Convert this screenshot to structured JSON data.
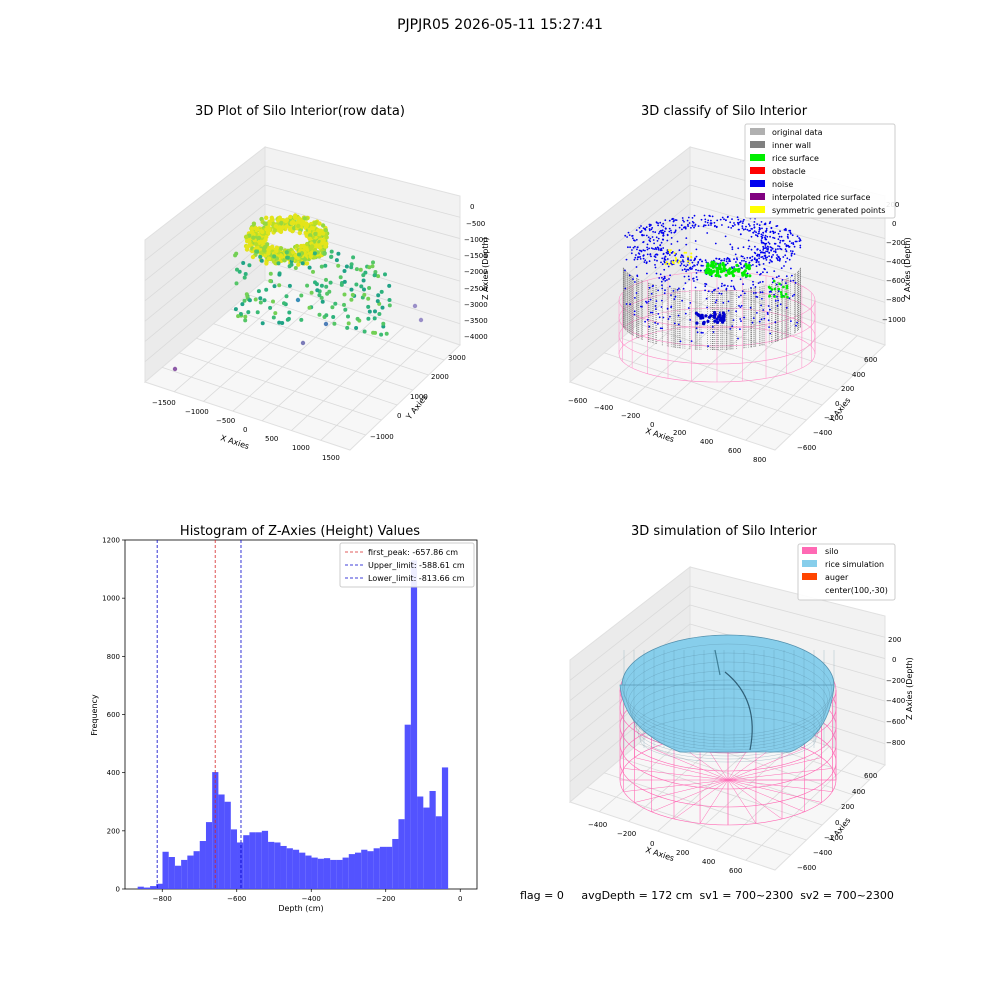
{
  "figure_title": "PJPJR05 2026-05-11 15:27:41",
  "footer": "flag = 0     avgDepth = 172 cm  sv1 = 700~2300  sv2 = 700~2300",
  "colors": {
    "hist_bar": "#4a4aff",
    "first_peak": "#d62728",
    "limits": "#0000cc",
    "silo": "#ff69b4",
    "rice": "#87ceeb",
    "auger": "#ff4500",
    "inner_wall": "#808080",
    "rice_surface": "#00ee00",
    "noise": "#0000ee"
  },
  "chart_data": [
    {
      "type": "scatter",
      "projection": "3d",
      "title": "3D Plot of Silo Interior(row data)",
      "xlabel": "X Axies",
      "ylabel": "Y Axies",
      "zlabel": "Z Axies (Depth)",
      "x_ticks": [
        "−1500",
        "−1000",
        "−500",
        "0",
        "500",
        "1000",
        "1500"
      ],
      "y_ticks": [
        "−1000",
        "0",
        "1000",
        "2000",
        "3000"
      ],
      "z_ticks": [
        "0",
        "−500",
        "−1000",
        "−1500",
        "−2000",
        "−2500",
        "−3000",
        "−3500",
        "−4000"
      ],
      "xlim": [
        -1700,
        1700
      ],
      "ylim": [
        -1500,
        3500
      ],
      "zlim": [
        -4200,
        200
      ],
      "grid": true
    },
    {
      "type": "scatter",
      "projection": "3d",
      "title": "3D classify of Silo Interior",
      "xlabel": "X Axies",
      "ylabel": "Y Axies",
      "zlabel": "Z Axies (Depth)",
      "x_ticks": [
        "−600",
        "−400",
        "−200",
        "0",
        "200",
        "400",
        "600",
        "800"
      ],
      "y_ticks": [
        "−600",
        "−400",
        "−200",
        "0",
        "200",
        "400",
        "600"
      ],
      "z_ticks": [
        "200",
        "0",
        "−200",
        "−400",
        "−600",
        "−800",
        "−1000"
      ],
      "legend": {
        "position": "upper right",
        "entries": [
          {
            "label": "original data",
            "color": "#b0b0b0"
          },
          {
            "label": "inner wall",
            "color": "#808080"
          },
          {
            "label": "rice surface",
            "color": "#00ee00"
          },
          {
            "label": "obstacle",
            "color": "#ff0000"
          },
          {
            "label": "noise",
            "color": "#0000ee"
          },
          {
            "label": "interpolated rice surface",
            "color": "#800080"
          },
          {
            "label": "symmetric generated points",
            "color": "#ffff00"
          }
        ]
      },
      "grid": true
    },
    {
      "type": "bar",
      "subtype": "histogram",
      "title": "Histogram of Z-Axies (Height) Values",
      "xlabel": "Depth (cm)",
      "ylabel": "Frequency",
      "xlim": [
        -900,
        45
      ],
      "ylim": [
        0,
        1200
      ],
      "x_ticks": [
        -800,
        -600,
        -400,
        -200,
        0
      ],
      "y_ticks": [
        0,
        200,
        400,
        600,
        800,
        1000,
        1200
      ],
      "bin_width": 16.67,
      "bin_start": -866,
      "values": [
        8,
        5,
        10,
        18,
        128,
        110,
        80,
        100,
        115,
        130,
        165,
        230,
        402,
        325,
        300,
        205,
        160,
        185,
        195,
        195,
        200,
        162,
        160,
        148,
        140,
        135,
        125,
        115,
        108,
        104,
        106,
        100,
        100,
        108,
        120,
        125,
        135,
        130,
        140,
        145,
        145,
        172,
        240,
        565,
        1130,
        318,
        280,
        337,
        250,
        418
      ],
      "vlines": [
        {
          "label": "first_peak: -657.86 cm",
          "x": -657.86,
          "color": "#d62728"
        },
        {
          "label": "Upper_limit: -588.61 cm",
          "x": -588.61,
          "color": "#0000cc"
        },
        {
          "label": "Lower_limit: -813.66 cm",
          "x": -813.66,
          "color": "#0000cc"
        }
      ],
      "legend": {
        "position": "upper right"
      }
    },
    {
      "type": "surface",
      "projection": "3d",
      "title": "3D simulation of Silo Interior",
      "xlabel": "X Axies",
      "ylabel": "Y Axies",
      "zlabel": "Z Axies (Depth)",
      "x_ticks": [
        "−400",
        "−200",
        "0",
        "200",
        "400",
        "600"
      ],
      "y_ticks": [
        "−600",
        "−400",
        "−200",
        "0",
        "200",
        "400",
        "600"
      ],
      "z_ticks": [
        "200",
        "0",
        "−200",
        "−400",
        "−600",
        "−800"
      ],
      "legend": {
        "position": "upper right",
        "entries": [
          {
            "label": "silo",
            "color": "#ff69b4"
          },
          {
            "label": "rice simulation",
            "color": "#87ceeb"
          },
          {
            "label": "auger",
            "color": "#ff4500"
          },
          {
            "label": "center(100,-30)",
            "color": "none"
          }
        ]
      },
      "grid": true
    }
  ]
}
